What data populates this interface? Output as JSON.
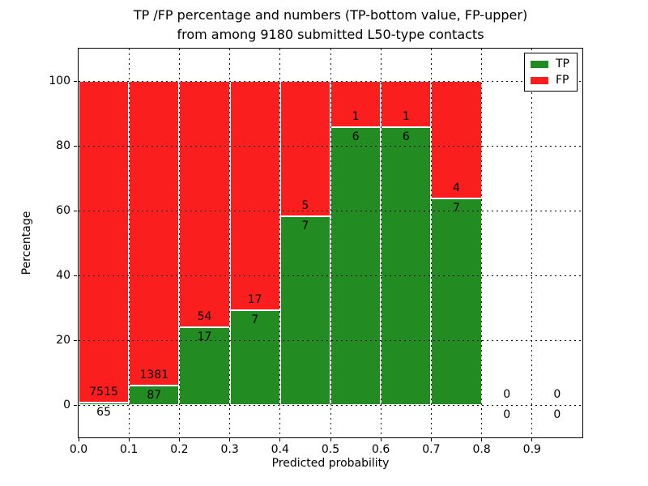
{
  "chart_data": {
    "type": "bar",
    "stacked": true,
    "title_line1": "TP /FP percentage and numbers (TP-bottom value, FP-upper)",
    "title_line2": "from among 9180 submitted L50-type contacts",
    "title": "TP /FP percentage and numbers (TP-bottom value, FP-upper)\nfrom among 9180 submitted L50-type contacts",
    "xlabel": "Predicted probability",
    "ylabel": "Percentage",
    "xlim": [
      0.0,
      1.0
    ],
    "ylim": [
      -10,
      110
    ],
    "xticks": [
      "0.0",
      "0.1",
      "0.2",
      "0.3",
      "0.4",
      "0.5",
      "0.6",
      "0.7",
      "0.8",
      "0.9"
    ],
    "yticks": [
      "0",
      "20",
      "40",
      "60",
      "80",
      "100"
    ],
    "grid": "dotted",
    "colors": {
      "tp": "#228b22",
      "fp": "#fa1e1e"
    },
    "legend": {
      "position": "upper right",
      "entries": [
        {
          "label": "TP",
          "color": "#228b22"
        },
        {
          "label": "FP",
          "color": "#fa1e1e"
        }
      ]
    },
    "total_contacts": 9180,
    "bins": [
      {
        "range": [
          0.0,
          0.1
        ],
        "tp": 65,
        "fp": 7515,
        "tp_pct": 0.86
      },
      {
        "range": [
          0.1,
          0.2
        ],
        "tp": 87,
        "fp": 1381,
        "tp_pct": 5.93
      },
      {
        "range": [
          0.2,
          0.3
        ],
        "tp": 17,
        "fp": 54,
        "tp_pct": 23.94
      },
      {
        "range": [
          0.3,
          0.4
        ],
        "tp": 7,
        "fp": 17,
        "tp_pct": 29.17
      },
      {
        "range": [
          0.4,
          0.5
        ],
        "tp": 7,
        "fp": 5,
        "tp_pct": 58.33
      },
      {
        "range": [
          0.5,
          0.6
        ],
        "tp": 6,
        "fp": 1,
        "tp_pct": 85.71
      },
      {
        "range": [
          0.6,
          0.7
        ],
        "tp": 6,
        "fp": 1,
        "tp_pct": 85.71
      },
      {
        "range": [
          0.7,
          0.8
        ],
        "tp": 7,
        "fp": 4,
        "tp_pct": 63.64
      },
      {
        "range": [
          0.8,
          0.9
        ],
        "tp": 0,
        "fp": 0,
        "tp_pct": 0
      },
      {
        "range": [
          0.9,
          1.0
        ],
        "tp": 0,
        "fp": 0,
        "tp_pct": 0
      }
    ]
  }
}
